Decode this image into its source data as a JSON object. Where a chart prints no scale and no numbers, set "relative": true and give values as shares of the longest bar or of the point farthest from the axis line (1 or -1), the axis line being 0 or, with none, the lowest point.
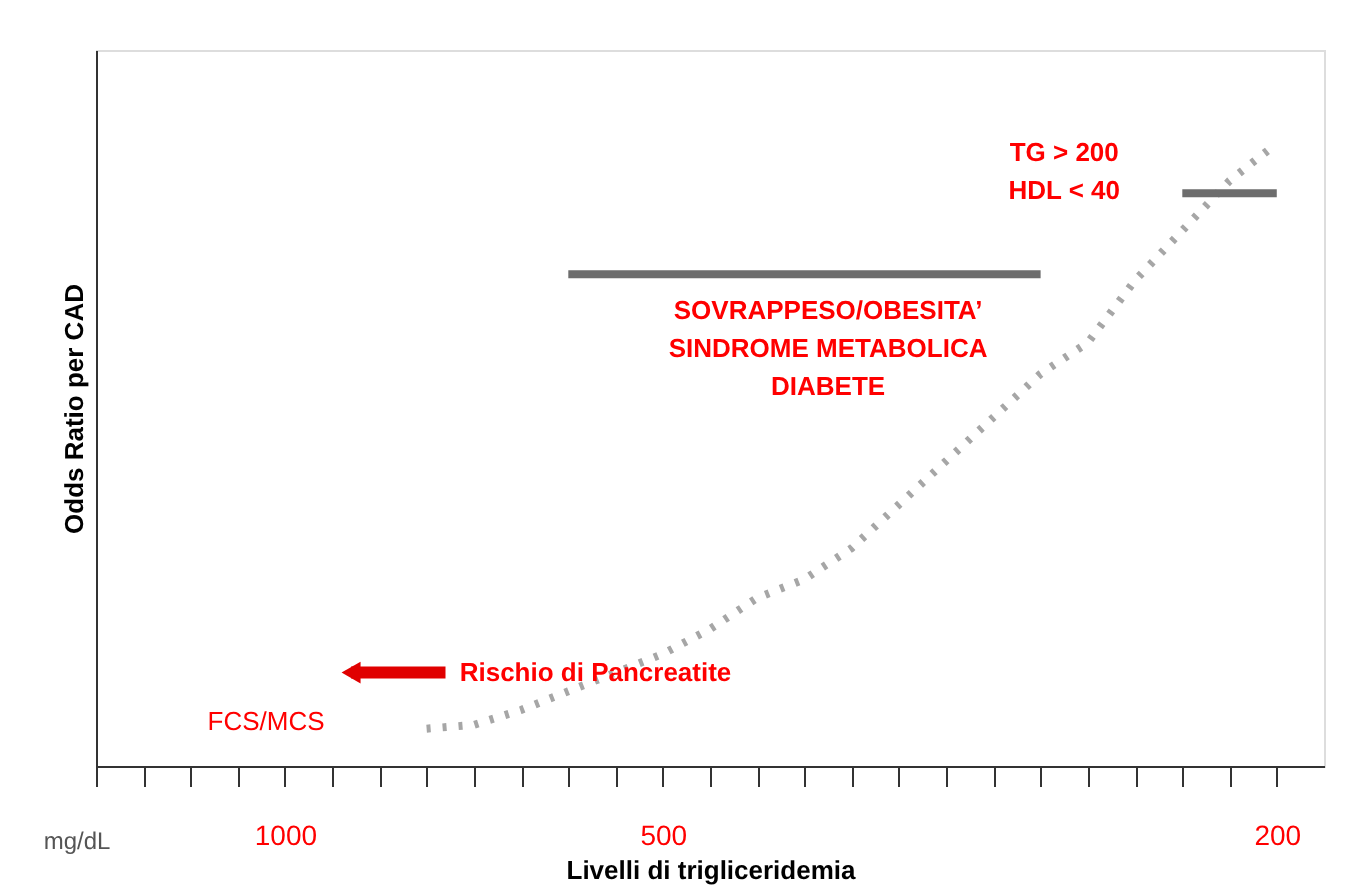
{
  "chart_data": {
    "type": "line",
    "relative": true,
    "grid": false,
    "marker": "none",
    "xlabel": "Livelli di trigliceridemia",
    "ylabel": "Odds Ratio per CAD",
    "categories": [
      null,
      null,
      null,
      null,
      "1000",
      null,
      null,
      null,
      null,
      null,
      null,
      null,
      "500",
      null,
      null,
      null,
      null,
      null,
      null,
      null,
      null,
      null,
      null,
      null,
      null,
      "200"
    ],
    "series": [
      {
        "color": "#a6a6a6",
        "line_style": "dotted",
        "values": [
          null,
          null,
          null,
          null,
          null,
          null,
          null,
          0.06,
          0.066,
          0.09,
          0.12,
          0.15,
          0.18,
          0.22,
          0.27,
          0.3,
          0.35,
          0.42,
          0.49,
          0.56,
          0.63,
          0.68,
          0.78,
          0.86,
          0.94,
          1.0
        ]
      },
      {
        "color": "#6d6d6d",
        "line_style": "solid",
        "values": [
          null,
          null,
          null,
          null,
          null,
          null,
          null,
          null,
          null,
          null,
          0.79,
          0.79,
          0.79,
          0.79,
          0.79,
          0.79,
          0.79,
          0.79,
          0.79,
          0.79,
          0.79,
          null,
          null,
          null,
          null,
          null
        ]
      },
      {
        "color": "#6d6d6d",
        "line_style": "solid",
        "values": [
          null,
          null,
          null,
          null,
          null,
          null,
          null,
          null,
          null,
          null,
          null,
          null,
          null,
          null,
          null,
          null,
          null,
          null,
          null,
          null,
          null,
          null,
          null,
          0.92,
          0.92,
          0.92
        ]
      }
    ],
    "annotations": [
      "SOVRAPPESO/OBESITA’\nSINDROME METABOLICA\nDIABETE",
      "TG  >  200\nHDL < 40",
      "Rischio di Pancreatite",
      "FCS/MCS",
      "mg/dL"
    ]
  }
}
